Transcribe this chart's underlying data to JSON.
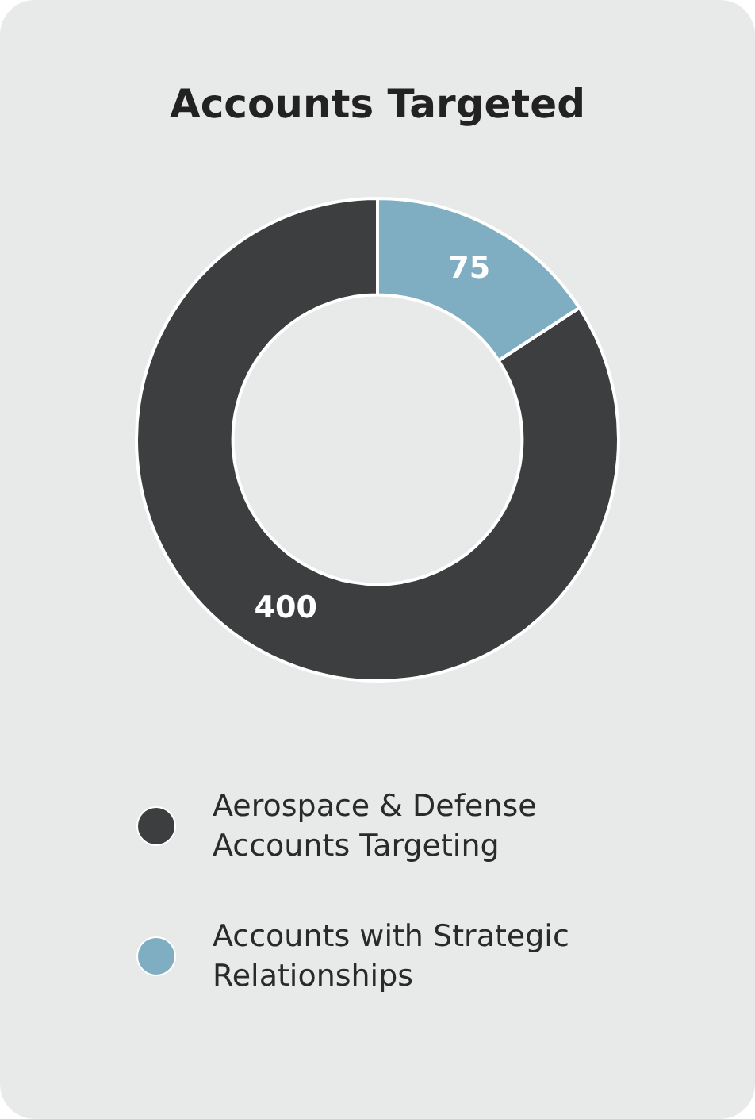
{
  "chart_data": {
    "type": "donut",
    "title": "Accounts Targeted",
    "categories": [
      "Aerospace & Defense Accounts Targeting",
      "Accounts with Strategic Relationships"
    ],
    "values": [
      400,
      75
    ],
    "colors": [
      "#3d3e40",
      "#7faec2"
    ],
    "data_labels": true,
    "legend": "bottom"
  }
}
